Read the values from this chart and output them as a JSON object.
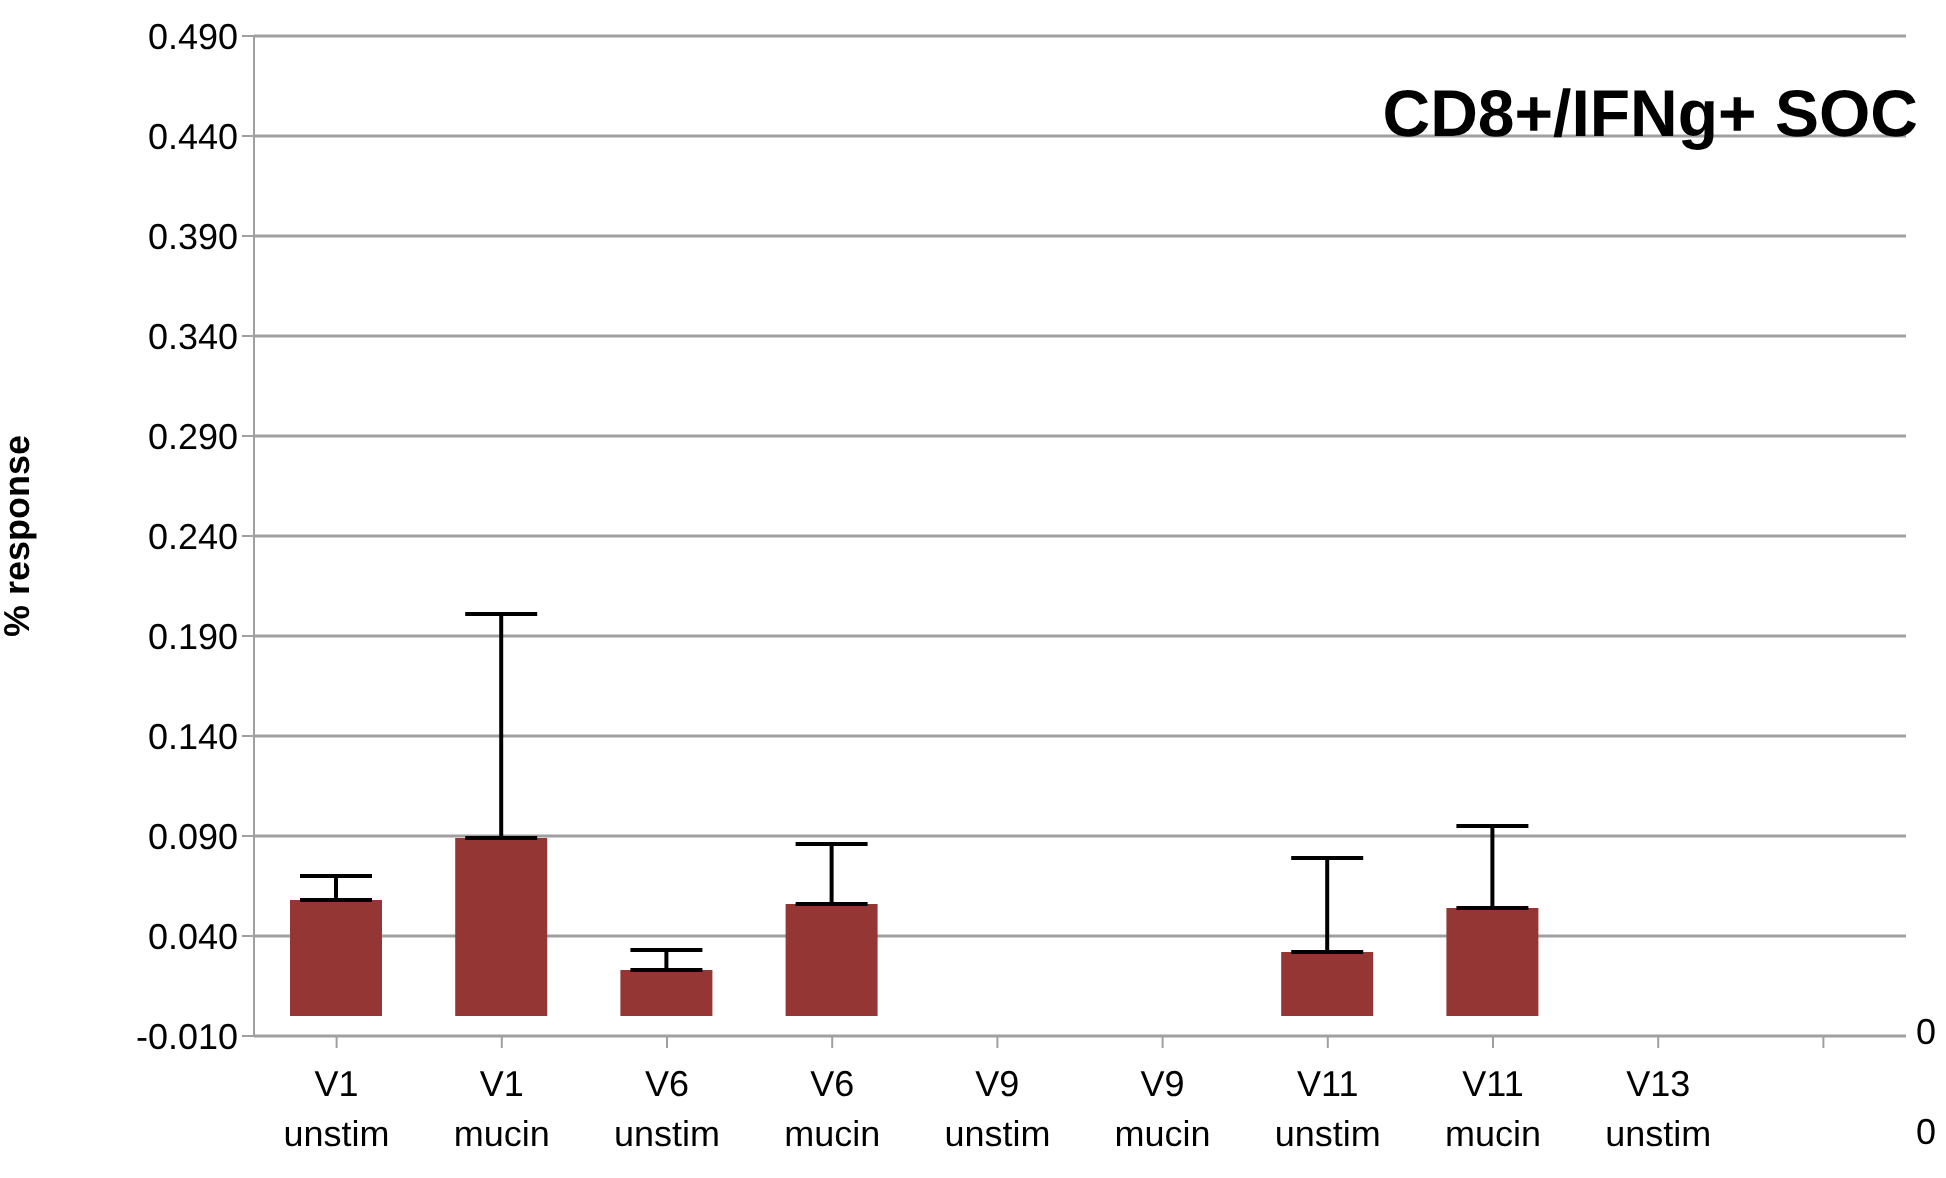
{
  "chart_data": {
    "type": "bar",
    "title": "CD8+/IFNg+ SOC",
    "ylabel": "% response",
    "categories": [
      "V1 unstim",
      "V1 mucin",
      "V6 unstim",
      "V6 mucin",
      "V9 unstim",
      "V9 mucin",
      "V11 unstim",
      "V11 mucin",
      "V13 unstim",
      null
    ],
    "values": [
      0.058,
      0.089,
      0.023,
      0.056,
      0,
      0,
      0.032,
      0.054,
      0,
      null
    ],
    "errors": [
      [
        0.058,
        0.07
      ],
      [
        0.089,
        0.201
      ],
      [
        0.023,
        0.033
      ],
      [
        0.056,
        0.086
      ],
      null,
      null,
      [
        0.032,
        0.079
      ],
      [
        0.054,
        0.095
      ],
      null,
      null
    ],
    "color": "#943634",
    "ylim": [
      -0.01,
      0.49
    ],
    "yticks": [
      {
        "value": -0.01,
        "label": "-0.010"
      },
      {
        "value": 0.04,
        "label": "0.040"
      },
      {
        "value": 0.09,
        "label": "0.090"
      },
      {
        "value": 0.14,
        "label": "0.140"
      },
      {
        "value": 0.19,
        "label": "0.190"
      },
      {
        "value": 0.24,
        "label": "0.240"
      },
      {
        "value": 0.29,
        "label": "0.290"
      },
      {
        "value": 0.34,
        "label": "0.340"
      },
      {
        "value": 0.39,
        "label": "0.390"
      },
      {
        "value": 0.44,
        "label": "0.440"
      },
      {
        "value": 0.49,
        "label": "0.490"
      }
    ],
    "grid": "y",
    "annotations": [
      "0",
      "0"
    ]
  }
}
